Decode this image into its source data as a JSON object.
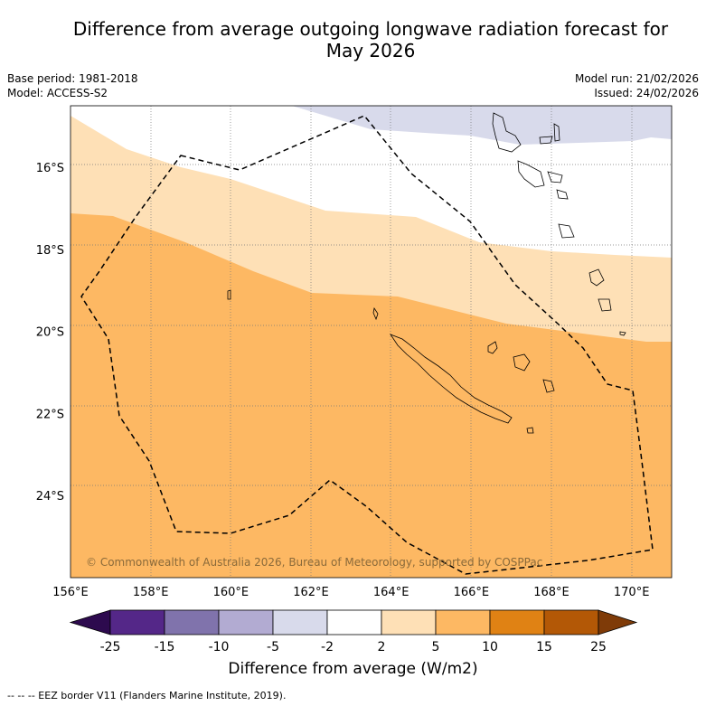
{
  "title": "Difference from average outgoing longwave radiation forecast for May 2026",
  "title_line1": "Difference from average outgoing longwave radiation forecast for",
  "title_line2": "May 2026",
  "base_period": "Base period: 1981-2018",
  "model": "Model: ACCESS-S2",
  "model_run": "Model run: 21/02/2026",
  "issued": "Issued: 24/02/2026",
  "copyright": "© Commonwealth of Australia 2026, Bureau of Meteorology, supported by COSPPac",
  "footer": "--  --  -- EEZ border V11 (Flanders Marine Institute, 2019).",
  "colorbar_label": "Difference from average (W/m2)",
  "colors": {
    "ext_low": "#2d0a4e",
    "c1": "#542788",
    "c2": "#8073ac",
    "c3": "#b2abd2",
    "c4": "#d8daeb",
    "c5": "#ffffff",
    "c6": "#fee0b6",
    "c7": "#fdb863",
    "c8": "#e08214",
    "c9": "#b35806",
    "ext_high": "#7f3b08"
  },
  "chart_data": {
    "type": "heatmap",
    "title": "Difference from average outgoing longwave radiation forecast for May 2026",
    "xlabel": "",
    "ylabel": "",
    "x_ticks": [
      "156°E",
      "158°E",
      "160°E",
      "162°E",
      "164°E",
      "166°E",
      "168°E",
      "170°E"
    ],
    "y_ticks": [
      "16°S",
      "18°S",
      "20°S",
      "22°S",
      "24°S"
    ],
    "xlim": [
      156,
      171
    ],
    "ylim": [
      -26.0,
      -14.5
    ],
    "colorbar": {
      "label": "Difference from average (W/m2)",
      "bounds": [
        -25,
        -15,
        -10,
        -5,
        -2,
        2,
        5,
        10,
        15,
        25
      ],
      "tick_labels": [
        "-25",
        "-15",
        "-10",
        "-5",
        "-2",
        "2",
        "5",
        "10",
        "15",
        "25"
      ],
      "extend": "both"
    },
    "regions": [
      {
        "range": "-5 to -2",
        "area": "north-east (above ~16°S east of 161.5°E)"
      },
      {
        "range": "-2 to 2",
        "area": "northern band ~15°S–18°S"
      },
      {
        "range": "2 to 5",
        "area": "band ~16.5°S–20.5°S"
      },
      {
        "range": "5 to 10",
        "area": "south and west, most of domain"
      }
    ],
    "grid": true
  }
}
